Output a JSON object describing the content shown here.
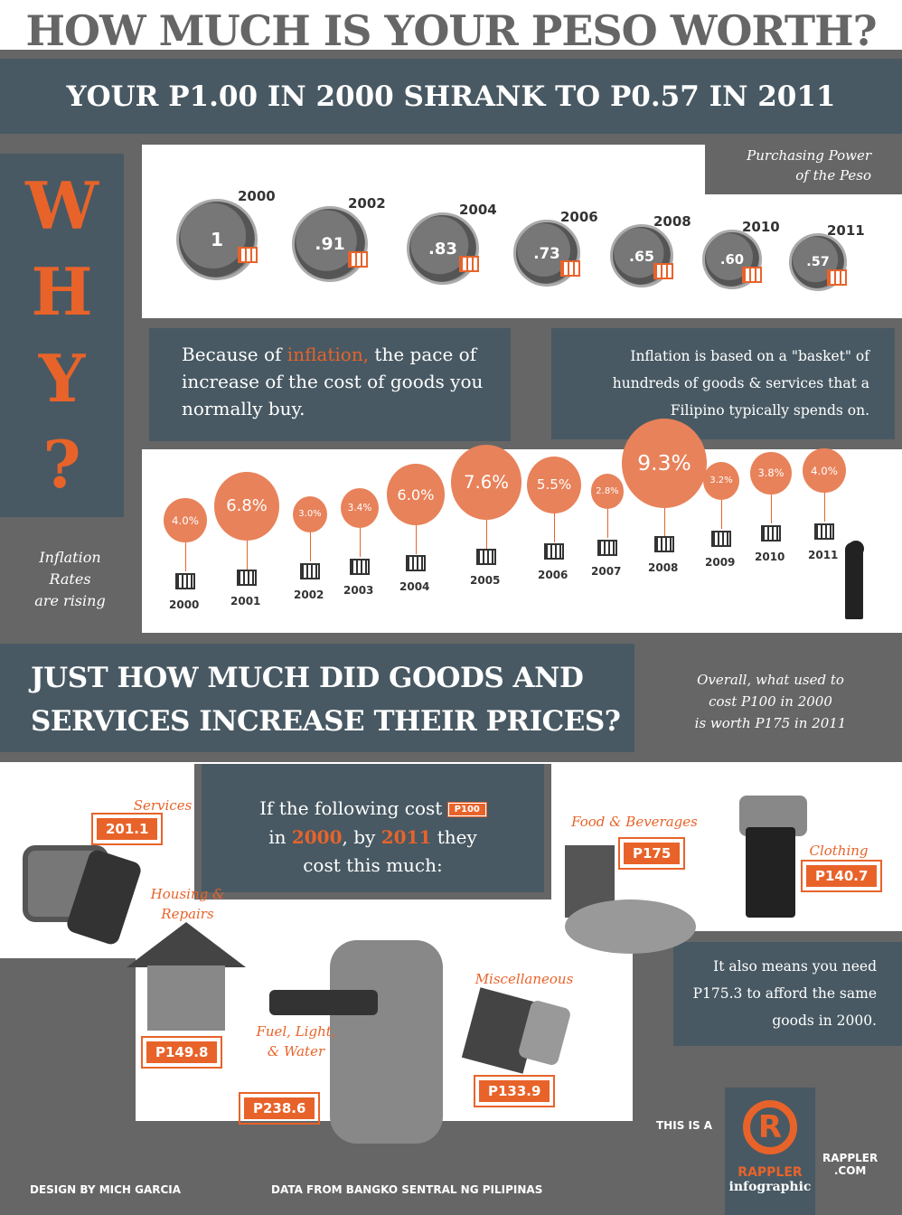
{
  "title": "HOW MUCH IS YOUR PESO WORTH?",
  "subtitle": "YOUR P1.00 IN 2000 SHRANK TO P0.57 IN 2011",
  "why": [
    "W",
    "H",
    "Y",
    "?"
  ],
  "purchasing_power": {
    "label_line1": "Purchasing Power",
    "label_line2": "of the Peso",
    "coins": [
      {
        "year": "2000",
        "value": "1"
      },
      {
        "year": "2002",
        "value": ".91"
      },
      {
        "year": "2004",
        "value": ".83"
      },
      {
        "year": "2006",
        "value": ".73"
      },
      {
        "year": "2008",
        "value": ".65"
      },
      {
        "year": "2010",
        "value": ".60"
      },
      {
        "year": "2011",
        "value": ".57"
      }
    ]
  },
  "because": {
    "pre": "Because of ",
    "highlight": "inflation,",
    "post": " the pace of increase of the cost of goods you normally buy."
  },
  "basket_note": "Inflation is based on a \"basket\" of hundreds of goods & services that a Filipino typically spends on.",
  "inflation_label": [
    "Inflation",
    "Rates",
    "are rising"
  ],
  "chart_data": {
    "type": "bar",
    "title": "Inflation Rates",
    "categories": [
      "2000",
      "2001",
      "2002",
      "2003",
      "2004",
      "2005",
      "2006",
      "2007",
      "2008",
      "2009",
      "2010",
      "2011"
    ],
    "values": [
      4.0,
      6.8,
      3.0,
      3.4,
      6.0,
      7.6,
      5.5,
      2.8,
      9.3,
      3.2,
      3.8,
      4.0
    ],
    "labels": [
      "4.0%",
      "6.8%",
      "3.0%",
      "3.4%",
      "6.0%",
      "7.6%",
      "5.5%",
      "2.8%",
      "9.3%",
      "3.2%",
      "3.8%",
      "4.0%"
    ]
  },
  "section2": {
    "heading_line1": "JUST HOW MUCH DID GOODS AND",
    "heading_line2": "SERVICES INCREASE THEIR PRICES?",
    "overall": [
      "Overall, what used to",
      "cost P100 in 2000",
      "is worth P175 in 2011"
    ]
  },
  "intro": {
    "t1": "If the following cost",
    "base": "P100",
    "t2": "in ",
    "y1": "2000",
    "t3": ", by ",
    "y2": "2011",
    "t4": " they",
    "t5": "cost this much:"
  },
  "goods": [
    {
      "name": "Services",
      "price": "201.1"
    },
    {
      "name": "Housing & Repairs",
      "price": "P149.8"
    },
    {
      "name": "Fuel, Light, & Water",
      "price": "P238.6"
    },
    {
      "name": "Miscellaneous",
      "price": "P133.9"
    },
    {
      "name": "Food & Beverages",
      "price": "P175"
    },
    {
      "name": "Clothing",
      "price": "P140.7"
    }
  ],
  "also": "It also means you need P175.3 to afford the same goods in 2000.",
  "footer": {
    "design": "DESIGN BY MICH GARCIA",
    "data": "DATA FROM BANGKO SENTRAL NG PILIPINAS",
    "this_is": "THIS IS A",
    "brand": "RAPPLER",
    "brand_sub": "infographic",
    "site1": "RAPPLER",
    "site2": ".COM"
  },
  "colors": {
    "orange": "#e8632a",
    "slate": "#485963",
    "gray": "#666666"
  }
}
